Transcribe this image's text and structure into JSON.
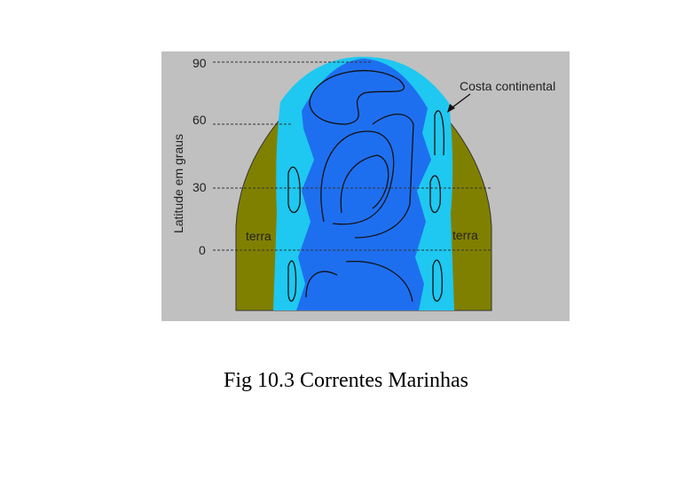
{
  "diagram": {
    "latitude_labels": [
      "90",
      "60",
      "30",
      "0"
    ],
    "axis_label": "Latitude em graus",
    "annotation": "Costa continental",
    "land_labels": [
      "terra",
      "terra"
    ],
    "caption": "Fig 10.3 Correntes Marinhas"
  }
}
